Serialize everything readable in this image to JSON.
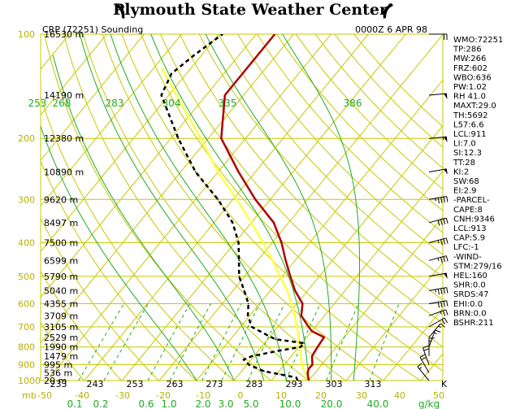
{
  "header": {
    "title": "Plymouth State Weather Center"
  },
  "sounding": {
    "station_label": "CRP (72251) Sounding",
    "time_label": "0000Z  6 APR 98"
  },
  "colors": {
    "background": "#ffffff",
    "grid": "#c8c800",
    "dry_adiabat": "#c8c800",
    "moist_adiabat": "#22aa22",
    "mixing_ratio": "#22aa22",
    "temperature": "#b00000",
    "dewpoint": "#000000",
    "parcel": "#ffff44"
  },
  "chart_data": {
    "type": "line",
    "subtype": "skew-t log-p",
    "pressure_levels_mb": [
      100,
      200,
      300,
      400,
      500,
      600,
      700,
      800,
      900,
      1000
    ],
    "pressure_labels": [
      "100",
      "200",
      "300",
      "400",
      "500",
      "600",
      "700",
      "800",
      "900",
      "1000"
    ],
    "temperature_ticks_c": [
      "-50",
      "-40",
      "-30",
      "-20",
      "-10",
      "0",
      "10",
      "20",
      "30",
      "40",
      "50"
    ],
    "x_unit_label": "mb",
    "mixing_ratio_ticks": [
      "0.1",
      "0.2",
      "0.6",
      "1.0",
      "2.0",
      "3.0",
      "5.0",
      "10.0",
      "20.0",
      "40.0"
    ],
    "mixing_ratio_unit": "g/kg",
    "theta_bottom_labels": [
      "233",
      "243",
      "253",
      "263",
      "273",
      "283",
      "293",
      "303",
      "313"
    ],
    "theta_bottom_unit": "K",
    "theta_e_labels": [
      "253",
      "268",
      "283",
      "304",
      "335",
      "386"
    ],
    "heights": [
      {
        "p": 100,
        "label": "16530 m"
      },
      {
        "p": 150,
        "label": "14190 m"
      },
      {
        "p": 200,
        "label": "12380 m"
      },
      {
        "p": 250,
        "label": "10890 m"
      },
      {
        "p": 300,
        "label": "9620 m"
      },
      {
        "p": 350,
        "label": "8497 m"
      },
      {
        "p": 400,
        "label": "7500 m"
      },
      {
        "p": 450,
        "label": "6599 m"
      },
      {
        "p": 500,
        "label": "5790 m"
      },
      {
        "p": 550,
        "label": "5040 m"
      },
      {
        "p": 600,
        "label": "4355 m"
      },
      {
        "p": 650,
        "label": "3709 m"
      },
      {
        "p": 700,
        "label": "3105 m"
      },
      {
        "p": 750,
        "label": "2529 m"
      },
      {
        "p": 800,
        "label": "1990 m"
      },
      {
        "p": 850,
        "label": "1479 m"
      },
      {
        "p": 900,
        "label": "995 m"
      },
      {
        "p": 950,
        "label": "536 m"
      },
      {
        "p": 1000,
        "label": "20 m"
      }
    ],
    "series": [
      {
        "key": "temperature",
        "points": [
          {
            "p": 1000,
            "t": 20.0
          },
          {
            "p": 975,
            "t": 19.0
          },
          {
            "p": 950,
            "t": 18.0
          },
          {
            "p": 925,
            "t": 17.4
          },
          {
            "p": 900,
            "t": 17.5
          },
          {
            "p": 850,
            "t": 15.5
          },
          {
            "p": 800,
            "t": 15.0
          },
          {
            "p": 750,
            "t": 14.6
          },
          {
            "p": 720,
            "t": 10.0
          },
          {
            "p": 700,
            "t": 8.2
          },
          {
            "p": 650,
            "t": 3.8
          },
          {
            "p": 600,
            "t": 1.5
          },
          {
            "p": 550,
            "t": -3.4
          },
          {
            "p": 500,
            "t": -7.8
          },
          {
            "p": 450,
            "t": -12.5
          },
          {
            "p": 400,
            "t": -17.5
          },
          {
            "p": 350,
            "t": -24.0
          },
          {
            "p": 300,
            "t": -34.0
          },
          {
            "p": 250,
            "t": -44.5
          },
          {
            "p": 200,
            "t": -56.5
          },
          {
            "p": 150,
            "t": -65.0
          },
          {
            "p": 130,
            "t": -65.0
          },
          {
            "p": 100,
            "t": -65.0
          }
        ]
      },
      {
        "key": "dewpoint",
        "points": [
          {
            "p": 1000,
            "t": 17.0
          },
          {
            "p": 980,
            "t": 16.0
          },
          {
            "p": 960,
            "t": 11.0
          },
          {
            "p": 940,
            "t": 6.0
          },
          {
            "p": 900,
            "t": 0.5
          },
          {
            "p": 870,
            "t": -2.0
          },
          {
            "p": 850,
            "t": -0.5
          },
          {
            "p": 820,
            "t": 5.5
          },
          {
            "p": 800,
            "t": 10.5
          },
          {
            "p": 780,
            "t": 10.5
          },
          {
            "p": 760,
            "t": 2.0
          },
          {
            "p": 740,
            "t": -1.0
          },
          {
            "p": 700,
            "t": -7.0
          },
          {
            "p": 650,
            "t": -10.5
          },
          {
            "p": 600,
            "t": -13.0
          },
          {
            "p": 550,
            "t": -17.0
          },
          {
            "p": 500,
            "t": -21.5
          },
          {
            "p": 450,
            "t": -25.0
          },
          {
            "p": 400,
            "t": -29.0
          },
          {
            "p": 350,
            "t": -35.0
          },
          {
            "p": 300,
            "t": -44.0
          },
          {
            "p": 250,
            "t": -56.0
          },
          {
            "p": 200,
            "t": -68.0
          },
          {
            "p": 150,
            "t": -82.0
          },
          {
            "p": 130,
            "t": -84.0
          },
          {
            "p": 115,
            "t": -82.0
          },
          {
            "p": 100,
            "t": -79.0
          }
        ]
      },
      {
        "key": "parcel",
        "points": [
          {
            "p": 1000,
            "t": 20.0
          },
          {
            "p": 913,
            "t": 15.3
          },
          {
            "p": 850,
            "t": 12.5
          },
          {
            "p": 800,
            "t": 10.2
          },
          {
            "p": 750,
            "t": 7.8
          },
          {
            "p": 700,
            "t": 5.0
          },
          {
            "p": 650,
            "t": 2.0
          },
          {
            "p": 600,
            "t": -1.5
          },
          {
            "p": 550,
            "t": -5.5
          },
          {
            "p": 500,
            "t": -10.5
          },
          {
            "p": 450,
            "t": -16.0
          },
          {
            "p": 400,
            "t": -22.5
          },
          {
            "p": 350,
            "t": -30.0
          },
          {
            "p": 300,
            "t": -39.0
          },
          {
            "p": 250,
            "t": -50.0
          },
          {
            "p": 200,
            "t": -62.0
          },
          {
            "p": 150,
            "t": -78.0
          },
          {
            "p": 125,
            "t": -88.0
          }
        ]
      }
    ],
    "winds": [
      {
        "p": 100,
        "dir": 270,
        "kt": 20
      },
      {
        "p": 150,
        "dir": 265,
        "kt": 50
      },
      {
        "p": 200,
        "dir": 265,
        "kt": 55
      },
      {
        "p": 250,
        "dir": 260,
        "kt": 50
      },
      {
        "p": 300,
        "dir": 260,
        "kt": 45
      },
      {
        "p": 350,
        "dir": 255,
        "kt": 40
      },
      {
        "p": 400,
        "dir": 255,
        "kt": 35
      },
      {
        "p": 450,
        "dir": 255,
        "kt": 35
      },
      {
        "p": 500,
        "dir": 260,
        "kt": 50
      },
      {
        "p": 550,
        "dir": 260,
        "kt": 45
      },
      {
        "p": 600,
        "dir": 260,
        "kt": 40
      },
      {
        "p": 650,
        "dir": 250,
        "kt": 25
      },
      {
        "p": 700,
        "dir": 240,
        "kt": 20
      },
      {
        "p": 750,
        "dir": 220,
        "kt": 15
      },
      {
        "p": 800,
        "dir": 200,
        "kt": 15
      },
      {
        "p": 850,
        "dir": 180,
        "kt": 15
      },
      {
        "p": 900,
        "dir": 160,
        "kt": 20
      },
      {
        "p": 950,
        "dir": 150,
        "kt": 20
      },
      {
        "p": 1000,
        "dir": 140,
        "kt": 15
      }
    ]
  },
  "indices": [
    "WMO:72251",
    "TP:286",
    "MW:266",
    "FRZ:602",
    "WBO:636",
    "PW:1.02",
    "RH 41.0",
    "MAXT:29.0",
    "TH:5692",
    "L57:6.6",
    "LCL:911",
    "LI:7.0",
    "SI:12.3",
    "TT:28",
    "KI:2",
    "SW:68",
    "EI:2.9",
    "-PARCEL-",
    "CAPE:8",
    "CNH:9346",
    "LCL:913",
    "CAP:5.9",
    "LFC:-1",
    "-WIND-",
    "STM:279/16",
    "HEL:160",
    "SHR:0.0",
    "SRDS:47",
    "EHI:0.0",
    "BRN:0.0",
    "BSHR:211"
  ]
}
